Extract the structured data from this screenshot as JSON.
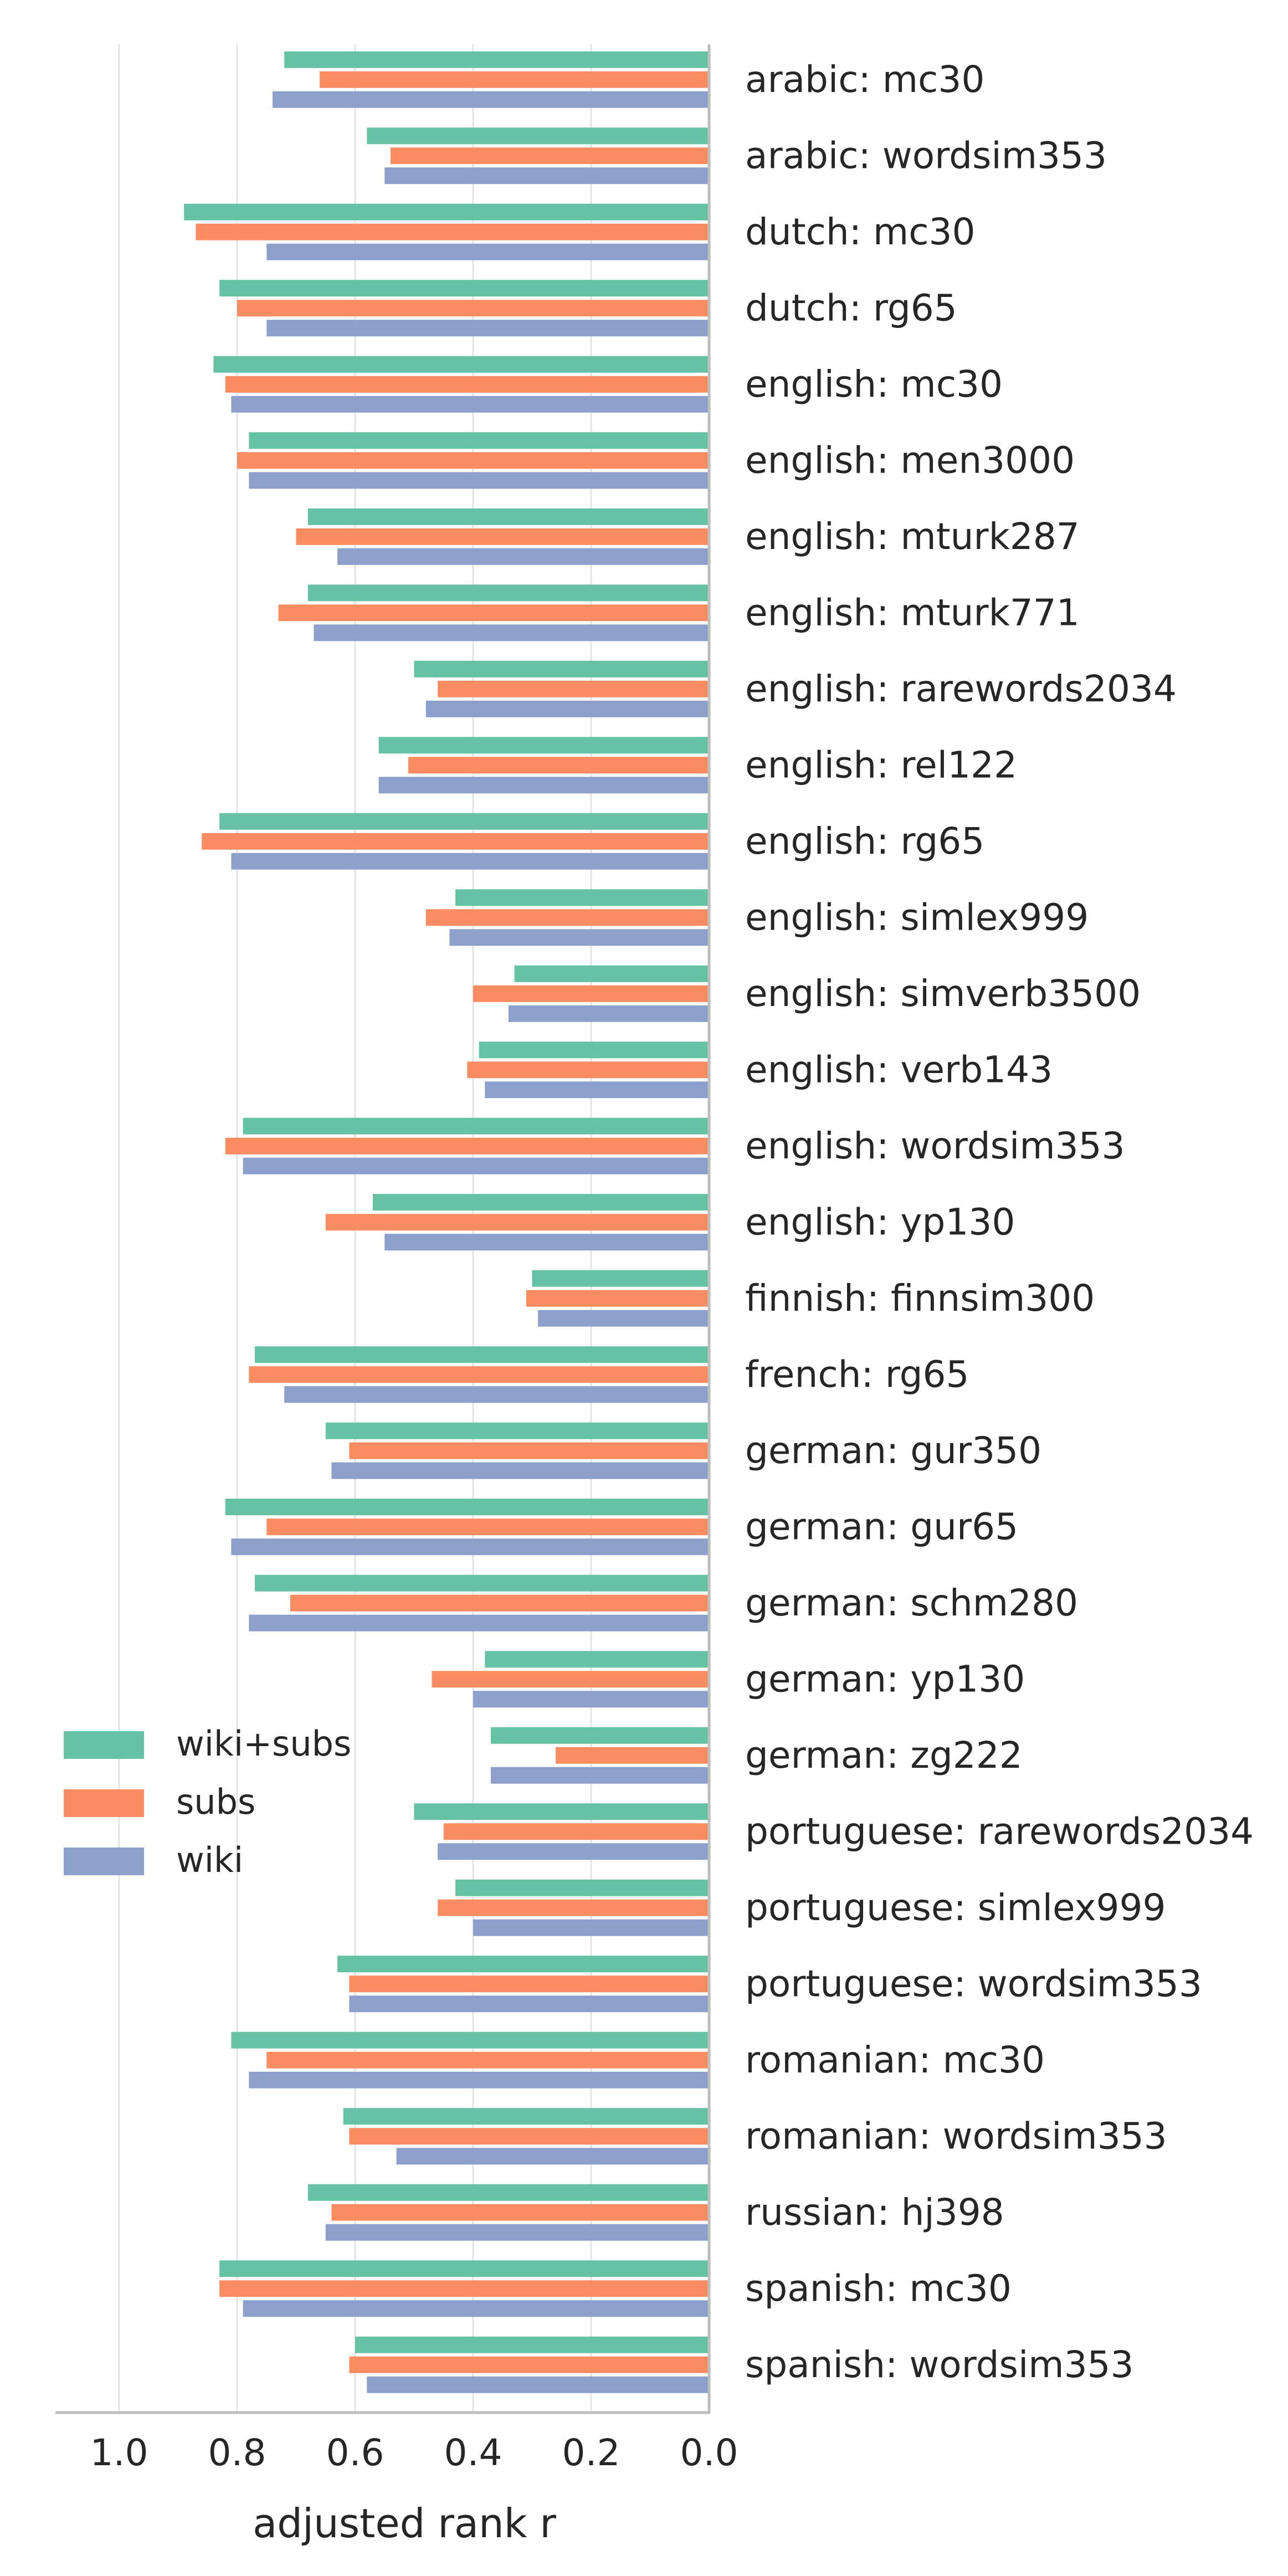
{
  "chart_data": {
    "type": "bar",
    "orientation": "horizontal",
    "x_axis_inverted": true,
    "xlabel": "adjusted rank r",
    "xlim": [
      0.0,
      1.1
    ],
    "xticks": [
      "1.0",
      "0.8",
      "0.6",
      "0.4",
      "0.2",
      "0.0"
    ],
    "xtick_values": [
      1.0,
      0.8,
      0.6,
      0.4,
      0.2,
      0.0
    ],
    "grid": "vertical",
    "legend_position": "left-middle",
    "categories": [
      "arabic: mc30",
      "arabic: wordsim353",
      "dutch: mc30",
      "dutch: rg65",
      "english: mc30",
      "english: men3000",
      "english: mturk287",
      "english: mturk771",
      "english: rarewords2034",
      "english: rel122",
      "english: rg65",
      "english: simlex999",
      "english: simverb3500",
      "english: verb143",
      "english: wordsim353",
      "english: yp130",
      "finnish: finnsim300",
      "french: rg65",
      "german: gur350",
      "german: gur65",
      "german: schm280",
      "german: yp130",
      "german: zg222",
      "portuguese: rarewords2034",
      "portuguese: simlex999",
      "portuguese: wordsim353",
      "romanian: mc30",
      "romanian: wordsim353",
      "russian: hj398",
      "spanish: mc30",
      "spanish: wordsim353"
    ],
    "series": [
      {
        "name": "wiki+subs",
        "color": "#66c2a5",
        "values": [
          0.72,
          0.58,
          0.89,
          0.83,
          0.84,
          0.78,
          0.68,
          0.68,
          0.5,
          0.56,
          0.83,
          0.43,
          0.33,
          0.39,
          0.79,
          0.57,
          0.3,
          0.77,
          0.65,
          0.82,
          0.77,
          0.38,
          0.37,
          0.5,
          0.43,
          0.63,
          0.81,
          0.62,
          0.68,
          0.83,
          0.6
        ]
      },
      {
        "name": "subs",
        "color": "#fc8d62",
        "values": [
          0.66,
          0.54,
          0.87,
          0.8,
          0.82,
          0.8,
          0.7,
          0.73,
          0.46,
          0.51,
          0.86,
          0.48,
          0.4,
          0.41,
          0.82,
          0.65,
          0.31,
          0.78,
          0.61,
          0.75,
          0.71,
          0.47,
          0.26,
          0.45,
          0.46,
          0.61,
          0.75,
          0.61,
          0.64,
          0.83,
          0.61
        ]
      },
      {
        "name": "wiki",
        "color": "#8da0cb",
        "values": [
          0.74,
          0.55,
          0.75,
          0.75,
          0.81,
          0.78,
          0.63,
          0.67,
          0.48,
          0.56,
          0.81,
          0.44,
          0.34,
          0.38,
          0.79,
          0.55,
          0.29,
          0.72,
          0.64,
          0.81,
          0.78,
          0.4,
          0.37,
          0.46,
          0.4,
          0.61,
          0.78,
          0.53,
          0.65,
          0.79,
          0.58
        ]
      }
    ]
  }
}
